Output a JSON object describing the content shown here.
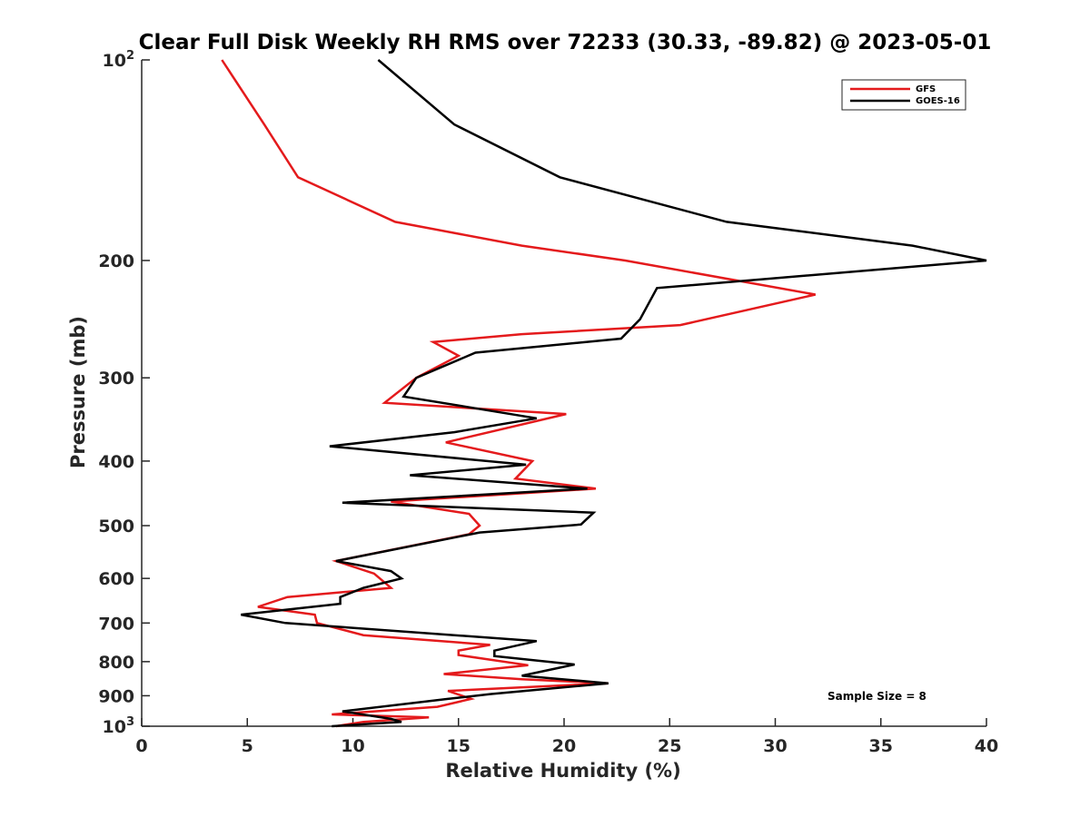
{
  "chart_data": {
    "type": "line",
    "title": "Clear Full Disk Weekly RH RMS over 72233 (30.33, -89.82) @ 2023-05-01",
    "xlabel": "Relative Humidity (%)",
    "ylabel": "Pressure (mb)",
    "xlim": [
      0,
      40
    ],
    "ylim": [
      100,
      1000
    ],
    "y_scale": "log",
    "y_reversed": true,
    "x_ticks": [
      "0",
      "5",
      "10",
      "15",
      "20",
      "25",
      "30",
      "35",
      "40"
    ],
    "y_ticks": [
      {
        "value": 100,
        "base": "10",
        "exp": "2"
      },
      {
        "value": 200,
        "label": "200"
      },
      {
        "value": 300,
        "label": "300"
      },
      {
        "value": 400,
        "label": "400"
      },
      {
        "value": 500,
        "label": "500"
      },
      {
        "value": 600,
        "label": "600"
      },
      {
        "value": 700,
        "label": "700"
      },
      {
        "value": 800,
        "label": "800"
      },
      {
        "value": 900,
        "label": "900"
      },
      {
        "value": 1000,
        "base": "10",
        "exp": "3"
      }
    ],
    "legend_position": "top-right",
    "grid": false,
    "annotation": "Sample Size = 8",
    "series": [
      {
        "name": "GFS",
        "color": "#e41a1c",
        "points": [
          [
            3.8,
            100
          ],
          [
            5.8,
            125
          ],
          [
            7.4,
            150
          ],
          [
            12.0,
            175
          ],
          [
            18.0,
            190
          ],
          [
            22.9,
            200
          ],
          [
            31.9,
            225
          ],
          [
            25.5,
            250
          ],
          [
            18.0,
            258
          ],
          [
            13.8,
            265
          ],
          [
            15.0,
            278
          ],
          [
            13.0,
            300
          ],
          [
            11.5,
            327
          ],
          [
            20.1,
            340
          ],
          [
            14.4,
            375
          ],
          [
            18.5,
            400
          ],
          [
            17.7,
            425
          ],
          [
            21.5,
            440
          ],
          [
            11.8,
            460
          ],
          [
            15.5,
            480
          ],
          [
            16.0,
            500
          ],
          [
            15.5,
            515
          ],
          [
            9.2,
            565
          ],
          [
            11.0,
            590
          ],
          [
            11.8,
            620
          ],
          [
            6.9,
            640
          ],
          [
            5.5,
            662
          ],
          [
            8.2,
            680
          ],
          [
            8.3,
            700
          ],
          [
            10.5,
            730
          ],
          [
            16.5,
            755
          ],
          [
            15.0,
            770
          ],
          [
            15.0,
            782
          ],
          [
            18.3,
            810
          ],
          [
            14.3,
            835
          ],
          [
            18.0,
            850
          ],
          [
            22.1,
            862
          ],
          [
            14.5,
            885
          ],
          [
            15.6,
            910
          ],
          [
            14.0,
            935
          ],
          [
            9.0,
            960
          ],
          [
            13.6,
            970
          ],
          [
            10.5,
            985
          ],
          [
            9.2,
            1000
          ]
        ]
      },
      {
        "name": "GOES-16",
        "color": "#000000",
        "points": [
          [
            11.2,
            100
          ],
          [
            14.8,
            125
          ],
          [
            19.8,
            150
          ],
          [
            27.7,
            175
          ],
          [
            36.5,
            190
          ],
          [
            40.0,
            200
          ],
          [
            24.4,
            220
          ],
          [
            23.6,
            245
          ],
          [
            22.7,
            262
          ],
          [
            15.8,
            275
          ],
          [
            13.0,
            300
          ],
          [
            12.4,
            320
          ],
          [
            18.7,
            345
          ],
          [
            14.8,
            362
          ],
          [
            8.9,
            380
          ],
          [
            18.2,
            405
          ],
          [
            12.7,
            420
          ],
          [
            21.1,
            440
          ],
          [
            9.5,
            462
          ],
          [
            21.4,
            478
          ],
          [
            20.8,
            498
          ],
          [
            16.0,
            512
          ],
          [
            9.2,
            565
          ],
          [
            11.8,
            585
          ],
          [
            12.3,
            600
          ],
          [
            10.5,
            620
          ],
          [
            9.4,
            640
          ],
          [
            9.4,
            655
          ],
          [
            4.7,
            680
          ],
          [
            6.8,
            700
          ],
          [
            18.7,
            745
          ],
          [
            16.7,
            770
          ],
          [
            16.7,
            785
          ],
          [
            20.5,
            808
          ],
          [
            18.0,
            840
          ],
          [
            22.1,
            862
          ],
          [
            16.5,
            895
          ],
          [
            14.5,
            910
          ],
          [
            9.5,
            950
          ],
          [
            11.8,
            975
          ],
          [
            12.3,
            985
          ],
          [
            9.0,
            1000
          ]
        ]
      }
    ]
  }
}
